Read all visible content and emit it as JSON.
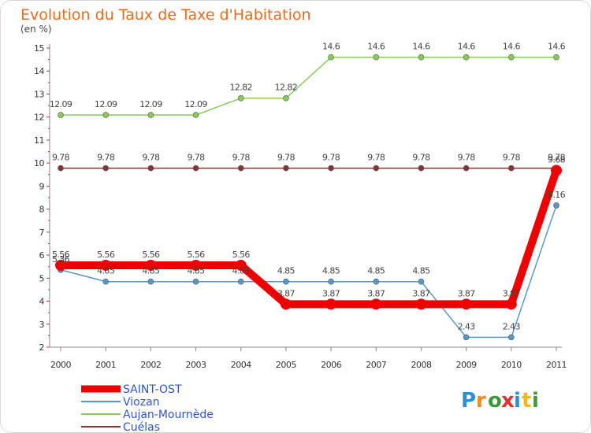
{
  "chart_data": {
    "type": "line",
    "title": "Evolution du Taux de Taxe d'Habitation",
    "subtitle": "(en %)",
    "xlabel": "",
    "ylabel": "",
    "x": [
      "2000",
      "2001",
      "2002",
      "2003",
      "2004",
      "2005",
      "2006",
      "2007",
      "2008",
      "2009",
      "2010",
      "2011"
    ],
    "ylim": [
      2,
      15
    ],
    "yticks": [
      "2",
      "3",
      "4",
      "5",
      "6",
      "7",
      "8",
      "9",
      "10",
      "11",
      "12",
      "13",
      "14",
      "15"
    ],
    "grid": false,
    "legend_position": "bottom-left",
    "series": [
      {
        "name": "Aujan-Mournède",
        "color": "#88cc55",
        "values": [
          12.09,
          12.09,
          12.09,
          12.09,
          12.82,
          12.82,
          14.6,
          14.6,
          14.6,
          14.6,
          14.6,
          14.6
        ],
        "labels": [
          "12.09",
          "12.09",
          "12.09",
          "12.09",
          "12.82",
          "12.82",
          "14.6",
          "14.6",
          "14.6",
          "14.6",
          "14.6",
          "14.6"
        ]
      },
      {
        "name": "Cuélas",
        "color": "#883333",
        "values": [
          9.78,
          9.78,
          9.78,
          9.78,
          9.78,
          9.78,
          9.78,
          9.78,
          9.78,
          9.78,
          9.78,
          9.78
        ],
        "labels": [
          "9.78",
          "9.78",
          "9.78",
          "9.78",
          "9.78",
          "9.78",
          "9.78",
          "9.78",
          "9.78",
          "9.78",
          "9.78",
          "9.78"
        ]
      },
      {
        "name": "Viozan",
        "color": "#5599cc",
        "values": [
          5.36,
          4.85,
          4.85,
          4.85,
          4.85,
          4.85,
          4.85,
          4.85,
          4.85,
          2.43,
          2.43,
          8.16
        ],
        "labels": [
          "5.36",
          "4.85",
          "4.85",
          "4.85",
          "4.85",
          "4.85",
          "4.85",
          "4.85",
          "4.85",
          "2.43",
          "2.43",
          "8.16"
        ]
      },
      {
        "name": "SAINT-OST",
        "color": "#ee0000",
        "values": [
          5.56,
          5.56,
          5.56,
          5.56,
          5.56,
          3.87,
          3.87,
          3.87,
          3.87,
          3.87,
          3.87,
          9.68
        ],
        "labels": [
          "5.56",
          "5.56",
          "5.56",
          "5.56",
          "5.56",
          "3.87",
          "3.87",
          "3.87",
          "3.87",
          "3.87",
          "3.87",
          "9.68"
        ]
      }
    ]
  },
  "legend": {
    "items": [
      {
        "name": "SAINT-OST",
        "color": "#ee0000",
        "text_color": "#3355cc",
        "thick": true
      },
      {
        "name": "Viozan",
        "color": "#5599cc",
        "text_color": "#3355cc",
        "thick": false
      },
      {
        "name": "Aujan-Mournède",
        "color": "#88cc55",
        "text_color": "#3355cc",
        "thick": false
      },
      {
        "name": "Cuélas",
        "color": "#883333",
        "text_color": "#3355cc",
        "thick": false
      }
    ]
  },
  "brand": {
    "text": "Proxiti",
    "letter_colors": [
      "#2a8fd6",
      "#f08a1c",
      "#3a9a3a",
      "#e03030",
      "#2a8fd6",
      "#f0b81c",
      "#3a9a3a"
    ]
  }
}
